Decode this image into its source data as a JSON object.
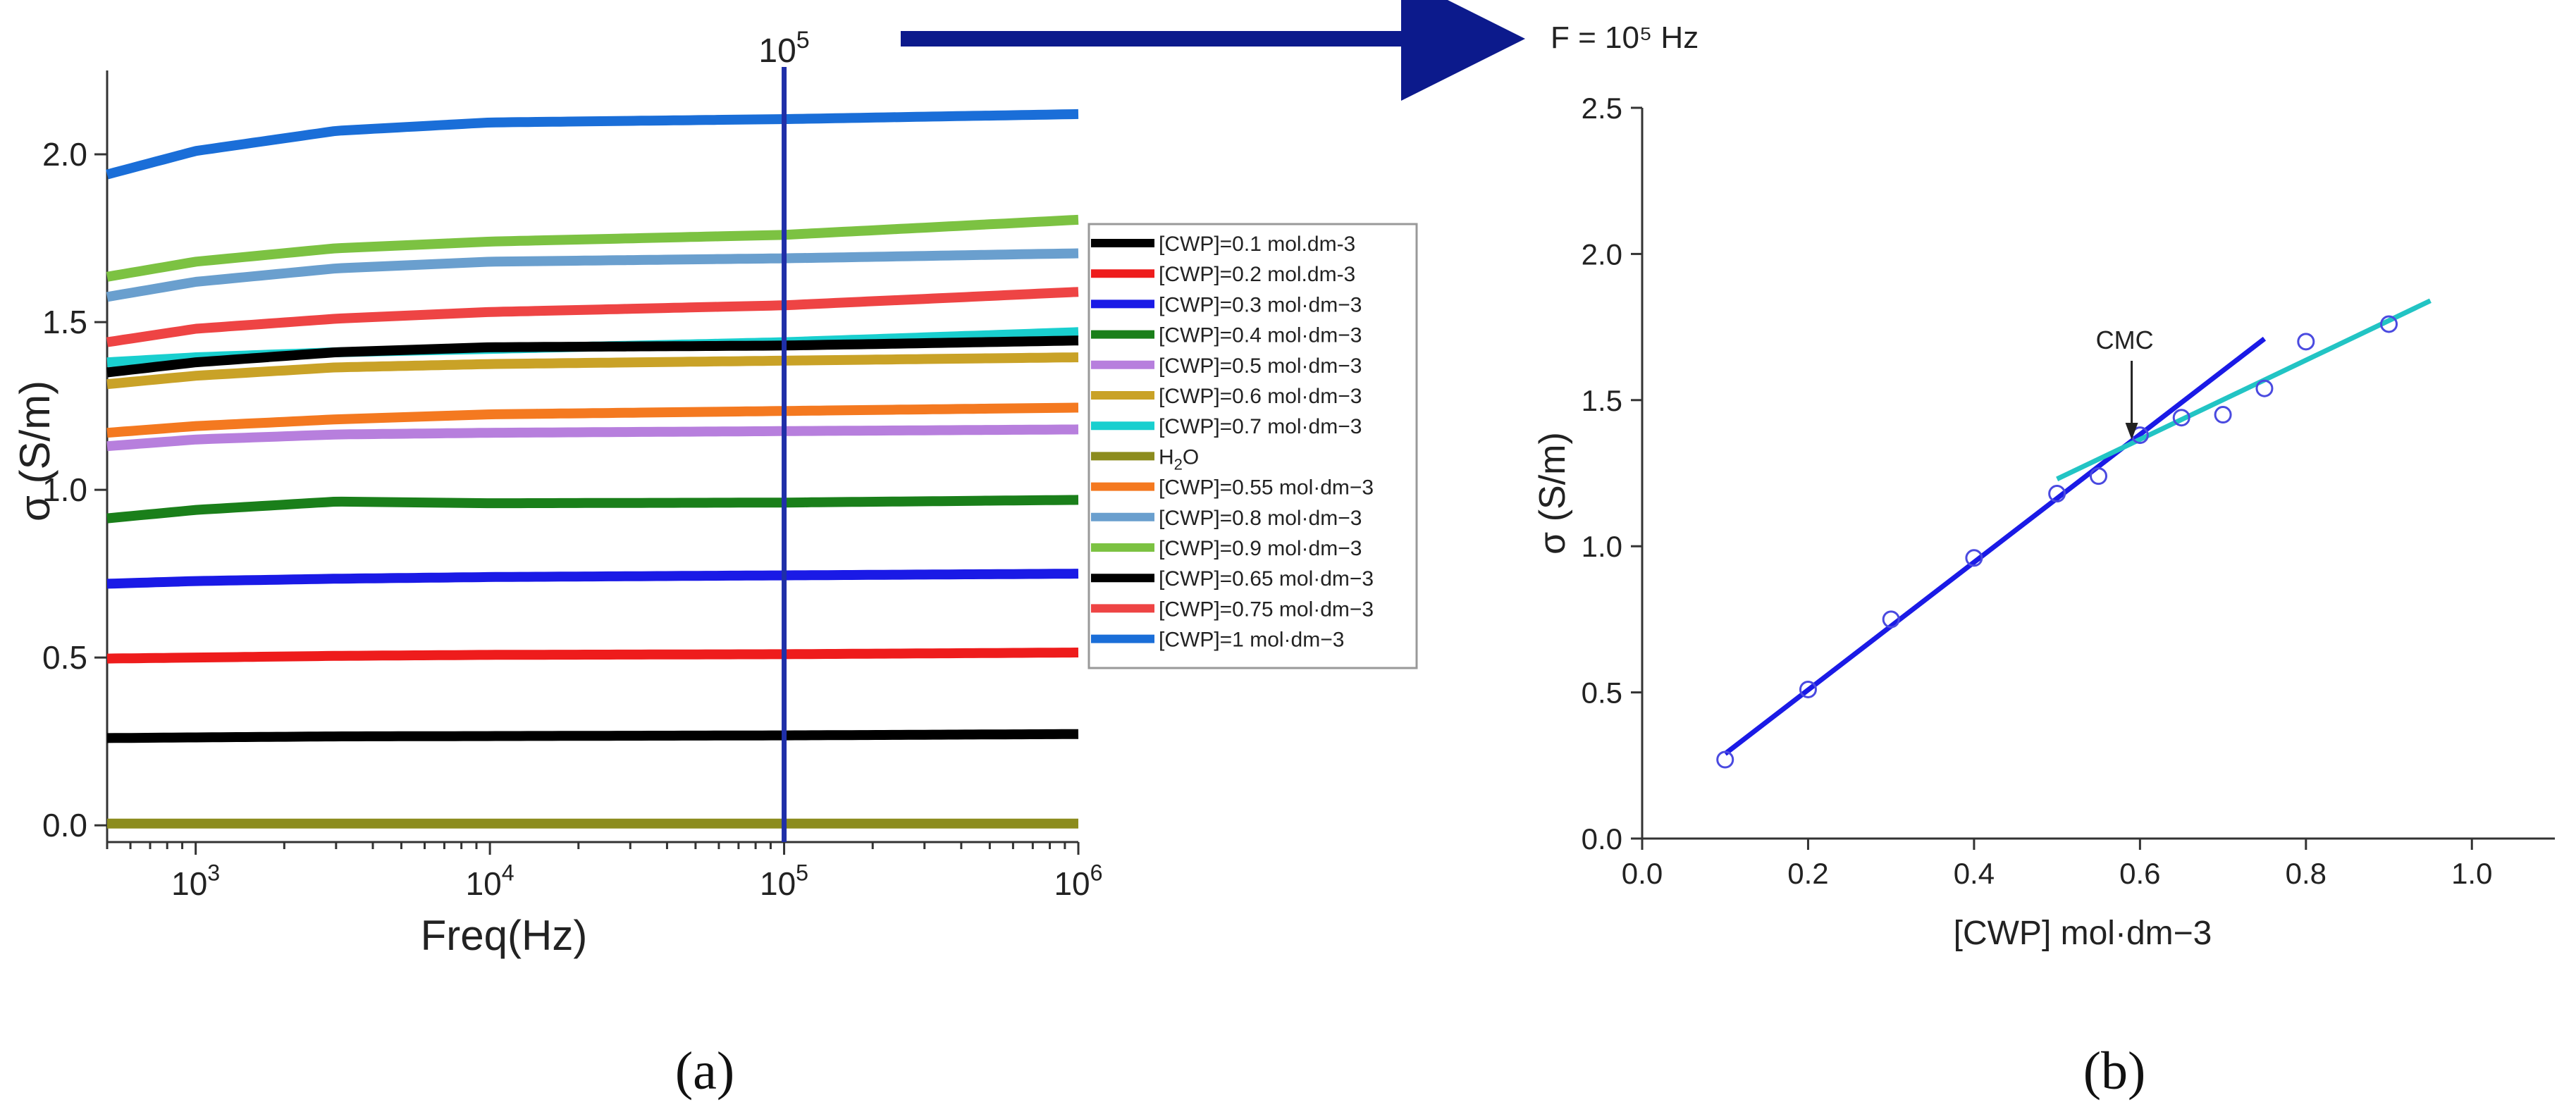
{
  "chart_data": [
    {
      "panel": "a",
      "type": "line",
      "x_scale": "log",
      "xlabel": "Freq(Hz)",
      "ylabel": "σ (S/m)",
      "xlim": [
        500,
        1000000
      ],
      "ylim": [
        -0.05,
        2.25
      ],
      "x_ticks": [
        {
          "value": 1000,
          "base": "10",
          "exp": "3"
        },
        {
          "value": 10000,
          "base": "10",
          "exp": "4"
        },
        {
          "value": 100000,
          "base": "10",
          "exp": "5"
        },
        {
          "value": 1000000,
          "base": "10",
          "exp": "6"
        }
      ],
      "y_ticks": [
        0.0,
        0.5,
        1.0,
        1.5,
        2.0
      ],
      "y_tick_labels": [
        "0.0",
        "0.5",
        "1.0",
        "1.5",
        "2.0"
      ],
      "marker_line": {
        "x": 100000,
        "label_base": "10",
        "label_exp": "5",
        "color": "#1f2fa8"
      },
      "x": [
        500,
        1000,
        3000,
        10000,
        100000,
        1000000
      ],
      "series": [
        {
          "name": "[CWP]=0.1 mol.dm-3",
          "color": "#000000",
          "values": [
            0.26,
            0.262,
            0.265,
            0.266,
            0.268,
            0.272
          ]
        },
        {
          "name": "[CWP]=0.2 mol.dm-3",
          "color": "#ee1c1c",
          "values": [
            0.497,
            0.5,
            0.505,
            0.508,
            0.51,
            0.515
          ]
        },
        {
          "name": "[CWP]=0.3 mol·dm−3",
          "color": "#1a1ae6",
          "values": [
            0.72,
            0.728,
            0.735,
            0.74,
            0.745,
            0.75
          ]
        },
        {
          "name": "[CWP]=0.4 mol·dm−3",
          "color": "#1a7f1a",
          "values": [
            0.915,
            0.94,
            0.965,
            0.96,
            0.962,
            0.97
          ]
        },
        {
          "name": "[CWP]=0.5 mol·dm−3",
          "color": "#b77fdd",
          "values": [
            1.13,
            1.15,
            1.165,
            1.17,
            1.175,
            1.18
          ]
        },
        {
          "name": "[CWP]=0.6 mol·dm−3",
          "color": "#c9a227",
          "values": [
            1.315,
            1.34,
            1.365,
            1.375,
            1.385,
            1.395
          ]
        },
        {
          "name": "[CWP]=0.7 mol·dm−3",
          "color": "#19cfcf",
          "values": [
            1.38,
            1.395,
            1.41,
            1.42,
            1.44,
            1.47
          ]
        },
        {
          "name": "H2O",
          "color": "#8c8c1e",
          "values": [
            0.005,
            0.005,
            0.005,
            0.005,
            0.005,
            0.005
          ]
        },
        {
          "name": "[CWP]=0.55 mol·dm−3",
          "color": "#f47920",
          "values": [
            1.17,
            1.19,
            1.21,
            1.225,
            1.235,
            1.245
          ]
        },
        {
          "name": "[CWP]=0.8 mol·dm−3",
          "color": "#6a9fce",
          "values": [
            1.575,
            1.62,
            1.66,
            1.68,
            1.69,
            1.705
          ]
        },
        {
          "name": "[CWP]=0.9 mol·dm−3",
          "color": "#7cc242",
          "values": [
            1.635,
            1.68,
            1.72,
            1.74,
            1.76,
            1.805
          ]
        },
        {
          "name": "[CWP]=0.65 mol·dm−3",
          "color": "#000000",
          "values": [
            1.35,
            1.38,
            1.41,
            1.425,
            1.43,
            1.445
          ]
        },
        {
          "name": "[CWP]=0.75 mol·dm−3",
          "color": "#ee4444",
          "values": [
            1.44,
            1.48,
            1.51,
            1.53,
            1.55,
            1.59
          ]
        },
        {
          "name": "[CWP]=1 mol·dm−3",
          "color": "#1a6ed8",
          "values": [
            1.94,
            2.01,
            2.07,
            2.095,
            2.105,
            2.12
          ]
        }
      ],
      "legend_placement": "right"
    },
    {
      "panel": "b",
      "type": "scatter",
      "title": "F = 10⁵ Hz",
      "xlabel": "[CWP] mol·dm−3",
      "ylabel": "σ (S/m)",
      "xlim": [
        0.0,
        1.1
      ],
      "ylim": [
        0.0,
        2.5
      ],
      "x_ticks": [
        0.0,
        0.2,
        0.4,
        0.6,
        0.8,
        1.0
      ],
      "x_tick_labels": [
        "0.0",
        "0.2",
        "0.4",
        "0.6",
        "0.8",
        "1.0"
      ],
      "y_ticks": [
        0.0,
        0.5,
        1.0,
        1.5,
        2.0,
        2.5
      ],
      "y_tick_labels": [
        "0.0",
        "0.5",
        "1.0",
        "1.5",
        "2.0",
        "2.5"
      ],
      "points": {
        "x": [
          0.1,
          0.2,
          0.3,
          0.4,
          0.5,
          0.55,
          0.6,
          0.65,
          0.7,
          0.75,
          0.8,
          0.9
        ],
        "y": [
          0.27,
          0.51,
          0.75,
          0.96,
          1.18,
          1.24,
          1.38,
          1.44,
          1.45,
          1.54,
          1.7,
          1.76
        ],
        "color": "#4a4ae0"
      },
      "fit_lines": [
        {
          "name": "pre-CMC fit",
          "color": "#1a1ae6",
          "x": [
            0.1,
            0.75
          ],
          "y": [
            0.29,
            1.71
          ]
        },
        {
          "name": "post-CMC fit",
          "color": "#22c4c4",
          "x": [
            0.5,
            0.95
          ],
          "y": [
            1.23,
            1.84
          ]
        }
      ],
      "annotation": {
        "text": "CMC",
        "x": 0.59,
        "y": 1.35
      }
    }
  ],
  "panel_labels": {
    "a": "(a)",
    "b": "(b)"
  },
  "colors": {
    "arrow": "#0c1a8c",
    "axis": "#333333"
  }
}
